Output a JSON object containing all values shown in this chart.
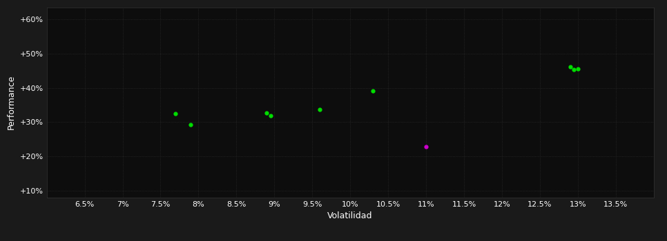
{
  "background_color": "#1a1a1a",
  "plot_bg_color": "#0d0d0d",
  "grid_color": "#2a2a2a",
  "text_color": "#ffffff",
  "xlabel": "Volatilidad",
  "ylabel": "Performance",
  "xlim": [
    0.06,
    0.14
  ],
  "ylim": [
    0.08,
    0.635
  ],
  "xticks": [
    0.065,
    0.07,
    0.075,
    0.08,
    0.085,
    0.09,
    0.095,
    0.1,
    0.105,
    0.11,
    0.115,
    0.12,
    0.125,
    0.13,
    0.135
  ],
  "yticks": [
    0.1,
    0.2,
    0.3,
    0.4,
    0.5,
    0.6
  ],
  "green_points": [
    [
      0.077,
      0.325
    ],
    [
      0.079,
      0.293
    ],
    [
      0.089,
      0.327
    ],
    [
      0.0895,
      0.319
    ],
    [
      0.096,
      0.337
    ],
    [
      0.103,
      0.391
    ],
    [
      0.129,
      0.462
    ],
    [
      0.1295,
      0.453
    ],
    [
      0.13,
      0.456
    ]
  ],
  "magenta_points": [
    [
      0.11,
      0.228
    ]
  ],
  "point_size": 12,
  "point_marker": "o",
  "tick_fontsize": 8,
  "label_fontsize": 9
}
